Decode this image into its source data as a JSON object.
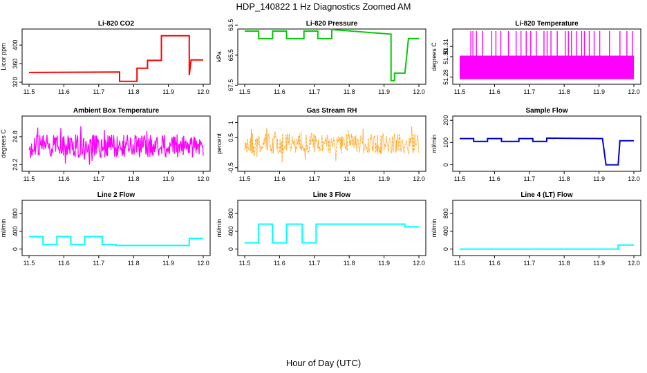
{
  "figure": {
    "title": "HDP_140822  1 Hz Diagnostics Zoomed AM",
    "xlabel": "Hour of Day (UTC)"
  },
  "chart_data": [
    {
      "type": "line",
      "title": "Li-820 CO2",
      "xlabel": "",
      "ylabel": "Licor ppm",
      "color": "#ff0000",
      "xlim": [
        11.5,
        12.0
      ],
      "ylim": [
        320,
        430
      ],
      "xticks": [
        11.5,
        11.6,
        11.7,
        11.8,
        11.9,
        12.0
      ],
      "yticks": [
        320,
        360,
        400
      ],
      "series": [
        {
          "x": [
            11.5,
            11.76,
            11.76,
            11.81,
            11.81,
            11.84,
            11.84,
            11.88,
            11.88,
            11.96,
            11.96,
            11.965,
            11.965,
            12.0
          ],
          "y": [
            341,
            342,
            322,
            322,
            350,
            350,
            367,
            367,
            420,
            420,
            335,
            368,
            368,
            368
          ]
        }
      ]
    },
    {
      "type": "line",
      "title": "Li-820 Pressure",
      "xlabel": "",
      "ylabel": "kPa",
      "color": "#00cc00",
      "xlim": [
        11.5,
        12.0
      ],
      "ylim": [
        67.3,
        63.9
      ],
      "xticks": [
        11.5,
        11.6,
        11.7,
        11.8,
        11.9,
        12.0
      ],
      "yticks": [
        63.5,
        65.5,
        67.5
      ],
      "series": [
        {
          "x": [
            11.5,
            11.54,
            11.54,
            11.58,
            11.58,
            11.62,
            11.62,
            11.67,
            11.67,
            11.71,
            11.71,
            11.75,
            11.75,
            11.92,
            11.92,
            11.93,
            11.93,
            11.96,
            11.96,
            11.97,
            11.97,
            12.0
          ],
          "y": [
            63.9,
            63.9,
            64.4,
            64.4,
            63.9,
            63.9,
            64.4,
            64.4,
            63.9,
            63.9,
            64.4,
            64.4,
            63.8,
            64.1,
            67.2,
            67.2,
            66.7,
            66.7,
            66.7,
            64.4,
            64.4,
            64.4
          ]
        }
      ]
    },
    {
      "type": "line",
      "title": "Li-820 Temperature",
      "xlabel": "",
      "ylabel": "degrees C",
      "color": "#ff00ff",
      "xlim": [
        11.5,
        12.0
      ],
      "ylim": [
        51.275,
        51.325
      ],
      "xticks": [
        11.5,
        11.6,
        11.7,
        11.8,
        11.9,
        12.0
      ],
      "yticks": [
        51.28,
        51.3,
        51.31
      ],
      "ytick_labels": [
        "51.28",
        "51.30",
        "51.31"
      ],
      "series": [
        {
          "band_low": 51.278,
          "band_high": 51.301,
          "spikes": [
            11.532,
            11.538,
            11.548,
            11.566,
            11.592,
            11.604,
            11.618,
            11.64,
            11.662,
            11.676,
            11.691,
            11.704,
            11.72,
            11.742,
            11.751,
            11.762,
            11.78,
            11.803,
            11.812,
            11.821,
            11.836,
            11.85,
            11.858,
            11.872,
            11.886,
            11.902,
            11.93,
            11.96,
            11.98,
            11.996
          ],
          "spike_top": 51.325
        }
      ]
    },
    {
      "type": "line",
      "title": "Ambient Box Temperature",
      "xlabel": "",
      "ylabel": "degrees C",
      "color": "#ff00ff",
      "xlim": [
        11.5,
        12.0
      ],
      "ylim": [
        24.1,
        25.2
      ],
      "xticks": [
        11.5,
        11.6,
        11.7,
        11.8,
        11.9,
        12.0
      ],
      "yticks": [
        24.2,
        24.8
      ],
      "series": [
        {
          "mean": 24.6,
          "noise": 0.25
        }
      ]
    },
    {
      "type": "scatter",
      "title": "Gas Stream RH",
      "xlabel": "",
      "ylabel": "percent",
      "color": "#ff9900",
      "xlim": [
        11.5,
        12.0
      ],
      "ylim": [
        -0.55,
        1.15
      ],
      "xticks": [
        11.5,
        11.6,
        11.7,
        11.8,
        11.9,
        12.0
      ],
      "yticks": [
        -0.5,
        0.5,
        1.0
      ],
      "series": [
        {
          "mean": 0.3,
          "noise": 0.35
        }
      ]
    },
    {
      "type": "line",
      "title": "Sample Flow",
      "xlabel": "",
      "ylabel": "ml/min",
      "color": "#0000cc",
      "xlim": [
        11.5,
        12.0
      ],
      "ylim": [
        -20,
        210
      ],
      "xticks": [
        11.5,
        11.6,
        11.7,
        11.8,
        11.9,
        12.0
      ],
      "yticks": [
        0,
        100,
        200
      ],
      "series": [
        {
          "x": [
            11.5,
            11.54,
            11.54,
            11.58,
            11.58,
            11.62,
            11.62,
            11.67,
            11.67,
            11.71,
            11.71,
            11.75,
            11.75,
            11.91,
            11.91,
            11.92,
            11.92,
            11.955,
            11.955,
            11.96,
            11.96,
            12.0
          ],
          "y": [
            118,
            118,
            105,
            105,
            118,
            118,
            105,
            105,
            118,
            118,
            105,
            105,
            120,
            118,
            118,
            0,
            0,
            0,
            0,
            108,
            108,
            108
          ]
        }
      ]
    },
    {
      "type": "line",
      "title": "Line 2 Flow",
      "xlabel": "",
      "ylabel": "ml/min",
      "color": "#00ffff",
      "xlim": [
        11.5,
        12.0
      ],
      "ylim": [
        -100,
        1050
      ],
      "xticks": [
        11.5,
        11.6,
        11.7,
        11.8,
        11.9,
        12.0
      ],
      "yticks": [
        0,
        400,
        800
      ],
      "series": [
        {
          "x": [
            11.5,
            11.54,
            11.54,
            11.58,
            11.58,
            11.62,
            11.62,
            11.66,
            11.66,
            11.71,
            11.71,
            11.75,
            11.75,
            11.96,
            11.96,
            12.0
          ],
          "y": [
            280,
            280,
            100,
            100,
            280,
            280,
            100,
            100,
            280,
            280,
            100,
            100,
            80,
            80,
            240,
            240
          ]
        }
      ]
    },
    {
      "type": "line",
      "title": "Line 3 Flow",
      "xlabel": "",
      "ylabel": "ml/min",
      "color": "#00ffff",
      "xlim": [
        11.5,
        12.0
      ],
      "ylim": [
        -100,
        1050
      ],
      "xticks": [
        11.5,
        11.6,
        11.7,
        11.8,
        11.9,
        12.0
      ],
      "yticks": [
        0,
        400,
        800
      ],
      "series": [
        {
          "x": [
            11.5,
            11.54,
            11.54,
            11.58,
            11.58,
            11.62,
            11.62,
            11.665,
            11.665,
            11.705,
            11.705,
            11.96,
            11.96,
            12.0
          ],
          "y": [
            140,
            140,
            560,
            560,
            140,
            140,
            560,
            560,
            140,
            140,
            560,
            560,
            500,
            500
          ]
        }
      ]
    },
    {
      "type": "line",
      "title": "Line 4 (LT) Flow",
      "xlabel": "",
      "ylabel": "ml/min",
      "color": "#00ffff",
      "xlim": [
        11.5,
        12.0
      ],
      "ylim": [
        -100,
        1050
      ],
      "xticks": [
        11.5,
        11.6,
        11.7,
        11.8,
        11.9,
        12.0
      ],
      "yticks": [
        0,
        400,
        800
      ],
      "series": [
        {
          "x": [
            11.5,
            11.955,
            11.955,
            12.0
          ],
          "y": [
            0,
            0,
            90,
            90
          ]
        }
      ]
    }
  ]
}
